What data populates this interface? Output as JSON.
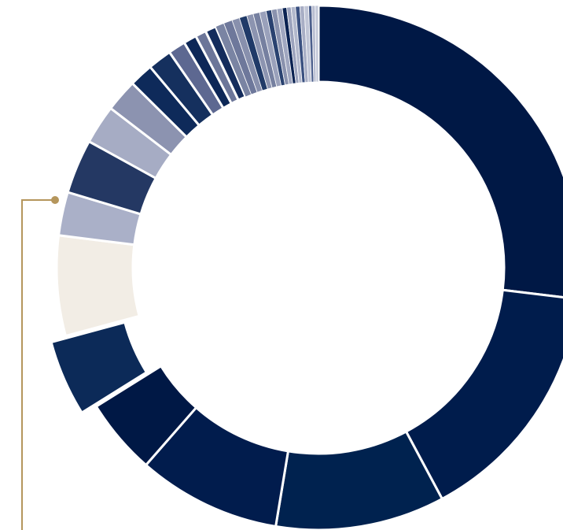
{
  "colors": {
    "background": "#ffffff",
    "separator": "#ffffff",
    "leader_line": "#b5965c",
    "leader_dot": "#b5965c"
  },
  "chart_data": {
    "type": "pie",
    "variant": "donut",
    "title": "",
    "legend": "none",
    "highlighted_index": 5,
    "values": [
      20.1,
      11.4,
      7.8,
      6.6,
      3.5,
      3.5,
      4.6,
      2.0,
      2.5,
      1.8,
      1.5,
      1.1,
      1.1,
      0.8,
      0.6,
      0.5,
      0.5,
      0.4,
      0.4,
      0.35,
      0.35,
      0.3,
      0.3,
      0.3,
      0.25,
      0.25,
      0.25,
      0.2,
      0.2,
      0.2,
      0.2,
      0.2,
      0.2,
      0.15,
      0.15,
      0.15
    ],
    "colors": [
      "#001845",
      "#001c4c",
      "#00224f",
      "#011c4d",
      "#001845",
      "#0c2a58",
      "#f2ede5",
      "#aab0c8",
      "#243863",
      "#a6acc4",
      "#8c93b0",
      "#0e2a5a",
      "#15305e",
      "#5d6891",
      "#0d2757",
      "#6c7699",
      "#142c5c",
      "#7a84a3",
      "#6e789b",
      "#8890ad",
      "#203a68",
      "#8c94b0",
      "#7680a0",
      "#9aa1bb",
      "#2a4270",
      "#8a92ae",
      "#a0a7c0",
      "#0a2252",
      "#9ca3bd",
      "#b2b8cc",
      "#3a5080",
      "#a8aec5",
      "#c0c5d6",
      "#4c5f8c",
      "#b8bdd0",
      "#c4c9d9"
    ]
  }
}
